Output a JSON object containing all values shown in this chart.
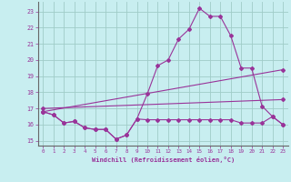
{
  "background_color": "#c8eef0",
  "grid_color": "#a0ccc8",
  "line_color": "#993399",
  "axis_color": "#666666",
  "xlabel": "Windchill (Refroidissement éolien,°C)",
  "xlim": [
    -0.5,
    23.5
  ],
  "ylim": [
    14.7,
    23.6
  ],
  "yticks": [
    15,
    16,
    17,
    18,
    19,
    20,
    21,
    22,
    23
  ],
  "xticks": [
    0,
    1,
    2,
    3,
    4,
    5,
    6,
    7,
    8,
    9,
    10,
    11,
    12,
    13,
    14,
    15,
    16,
    17,
    18,
    19,
    20,
    21,
    22,
    23
  ],
  "line1_x": [
    0,
    1,
    2,
    3,
    4,
    5,
    6,
    7,
    8,
    9,
    10,
    11,
    12,
    13,
    14,
    15,
    16,
    17,
    18,
    19,
    20,
    21,
    22,
    23
  ],
  "line1_y": [
    16.8,
    16.6,
    16.1,
    16.2,
    15.8,
    15.7,
    15.7,
    15.1,
    15.35,
    16.35,
    16.3,
    16.3,
    16.3,
    16.3,
    16.3,
    16.3,
    16.3,
    16.3,
    16.3,
    16.1,
    16.1,
    16.1,
    16.5,
    16.0
  ],
  "line2_x": [
    0,
    1,
    2,
    3,
    4,
    5,
    6,
    7,
    8,
    9,
    10,
    11,
    12,
    13,
    14,
    15,
    16,
    17,
    18,
    19,
    20,
    21,
    22,
    23
  ],
  "line2_y": [
    16.8,
    16.6,
    16.1,
    16.2,
    15.8,
    15.7,
    15.7,
    15.1,
    15.35,
    16.35,
    17.9,
    19.65,
    20.0,
    21.3,
    21.9,
    23.2,
    22.7,
    22.7,
    21.5,
    19.5,
    19.5,
    17.15,
    16.5,
    16.0
  ],
  "line3_x": [
    0,
    23
  ],
  "line3_y": [
    16.8,
    19.4
  ],
  "line4_x": [
    0,
    23
  ],
  "line4_y": [
    17.0,
    17.55
  ]
}
